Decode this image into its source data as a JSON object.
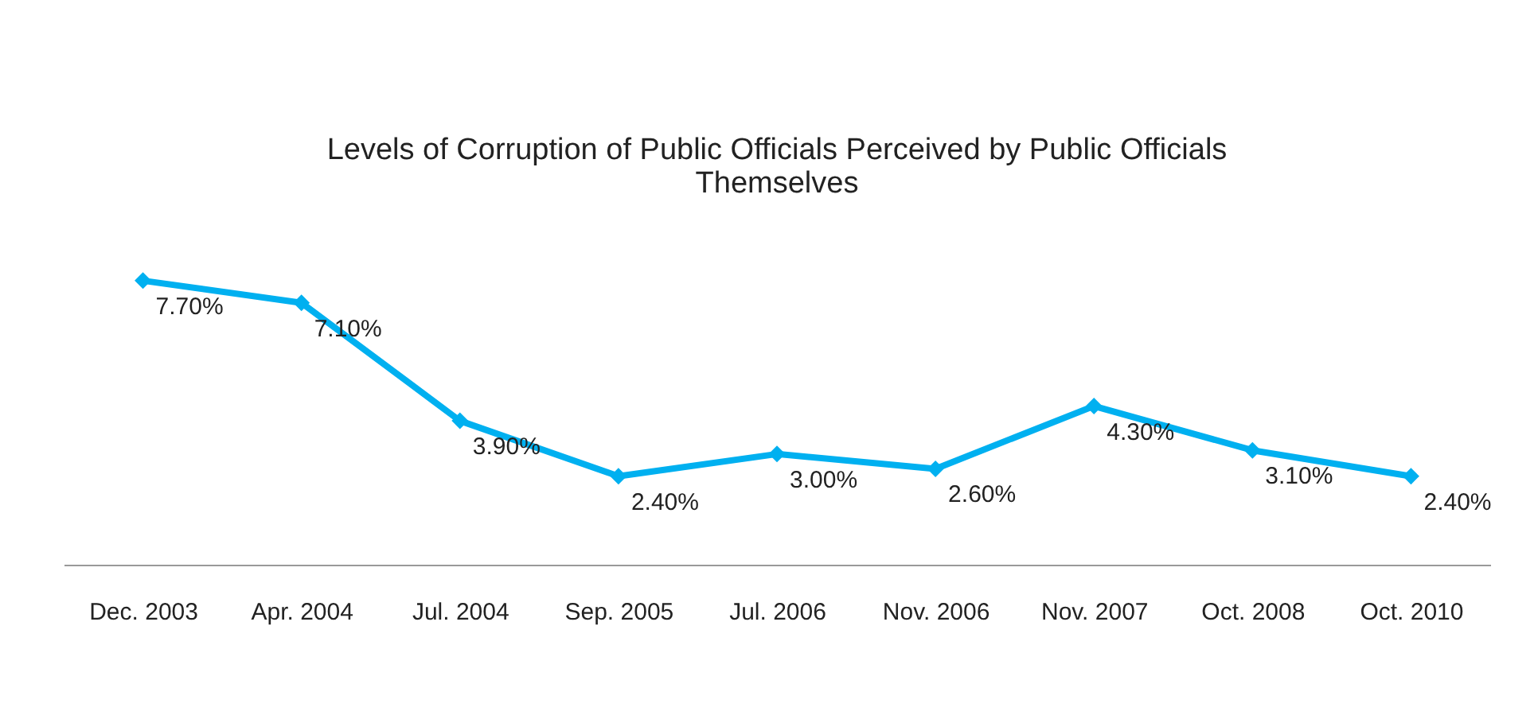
{
  "chart_data": {
    "type": "line",
    "title": "Levels of Corruption of Public Officials Perceived by Public Officials Themselves",
    "categories": [
      "Dec. 2003",
      "Apr. 2004",
      "Jul. 2004",
      "Sep. 2005",
      "Jul. 2006",
      "Nov. 2006",
      "Nov. 2007",
      "Oct. 2008",
      "Oct. 2010"
    ],
    "series": [
      {
        "color": "#00b0f0",
        "values": [
          7.7,
          7.1,
          3.9,
          2.4,
          3.0,
          2.6,
          4.3,
          3.1,
          2.4
        ],
        "value_labels": [
          "7.70%",
          "7.10%",
          "3.90%",
          "2.40%",
          "3.00%",
          "2.60%",
          "4.30%",
          "3.10%",
          "2.40%"
        ]
      }
    ],
    "marker": "diamond",
    "line_style": "solid",
    "grid": false,
    "tick_labels": "x"
  }
}
